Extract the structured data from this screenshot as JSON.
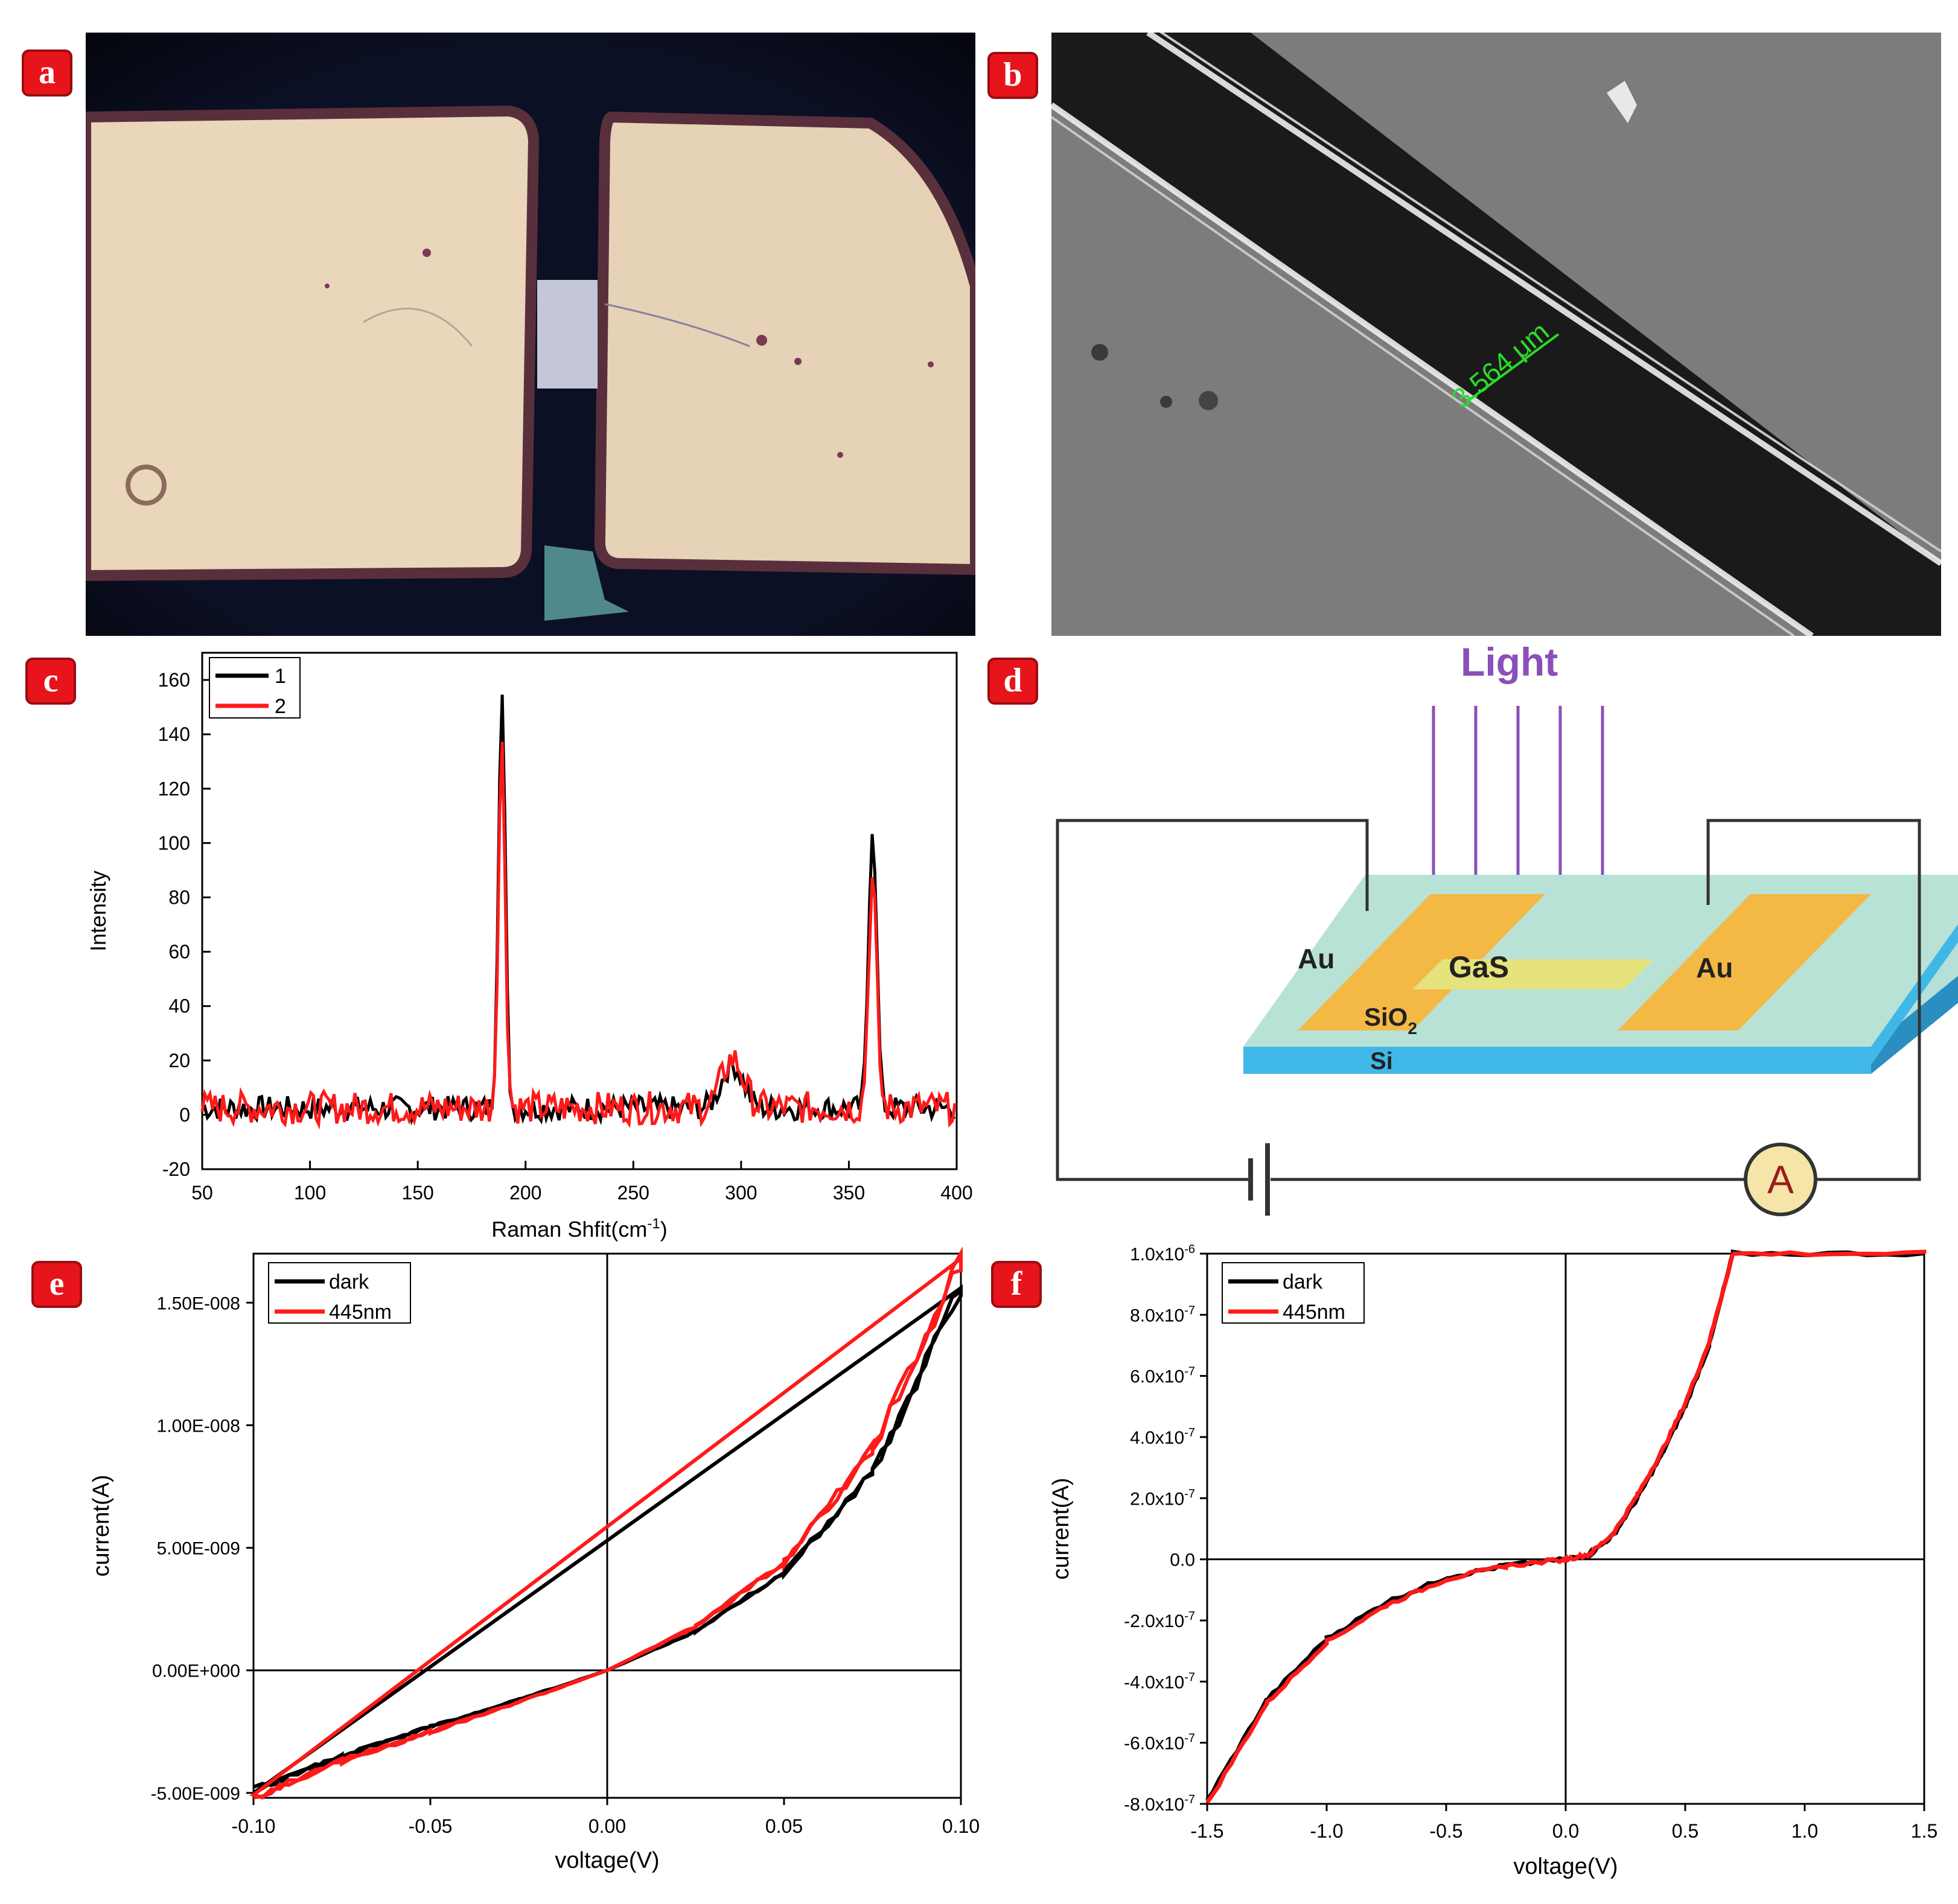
{
  "figure": {
    "labels": [
      "a",
      "b",
      "c",
      "d",
      "e",
      "f"
    ],
    "colors": {
      "series1": "#000000",
      "series2": "#ff1a1a",
      "badge": "#e8141b",
      "sem_measure": "#2bdc2b",
      "light_arrow": "#8a4fb8"
    }
  },
  "panel_b": {
    "measurement": "3.564 μm"
  },
  "panel_d": {
    "light": "Light",
    "au_left": "Au",
    "gas": "GaS",
    "au_right": "Au",
    "sio2_main": "SiO",
    "sio2_sub": "2",
    "si": "Si",
    "ammeter": "A"
  },
  "chart_data": [
    {
      "id": "c",
      "type": "line",
      "xlabel_main": "Raman Shfit(cm",
      "xlabel_sup": "-1",
      "xlabel_tail": ")",
      "ylabel": "Intensity",
      "xlim": [
        50,
        400
      ],
      "ylim": [
        -20,
        170
      ],
      "xticks": [
        "50",
        "100",
        "150",
        "200",
        "250",
        "300",
        "350",
        "400"
      ],
      "yticks": [
        "-20",
        "0",
        "20",
        "40",
        "60",
        "80",
        "100",
        "120",
        "140",
        "160"
      ],
      "legend": "top-left",
      "peaks": [
        {
          "x": 189,
          "y": 153
        },
        {
          "x": 296,
          "y": 16
        },
        {
          "x": 361,
          "y": 104
        }
      ],
      "series": [
        {
          "name": "1",
          "color": "#000000",
          "peaks": [
            153,
            16,
            104
          ]
        },
        {
          "name": "2",
          "color": "#ff1a1a",
          "peaks": [
            133,
            18,
            84
          ]
        }
      ]
    },
    {
      "id": "e",
      "type": "line",
      "xlabel": "voltage(V)",
      "ylabel": "current(A)",
      "xlim": [
        -0.1,
        0.1
      ],
      "ylim": [
        -5.2e-09,
        1.7e-08
      ],
      "xticks": [
        "-0.10",
        "-0.05",
        "0.00",
        "0.05",
        "0.10"
      ],
      "yticks": [
        "-5.00E-009",
        "0.00E+000",
        "5.00E-009",
        "1.00E-008",
        "1.50E-008"
      ],
      "legend": "top-left",
      "series": [
        {
          "name": "dark",
          "color": "#000000",
          "x": [
            -0.1,
            -0.075,
            -0.05,
            -0.025,
            0,
            0.025,
            0.05,
            0.075,
            0.1
          ],
          "y": [
            -4.9e-09,
            -3.5e-09,
            -2.3e-09,
            -1.2e-09,
            0,
            1.6e-09,
            4e-09,
            8e-09,
            1.56e-08
          ]
        },
        {
          "name": "445nm",
          "color": "#ff1a1a",
          "x": [
            -0.1,
            -0.075,
            -0.05,
            -0.025,
            0,
            0.025,
            0.05,
            0.075,
            0.1
          ],
          "y": [
            -5.2e-09,
            -3.7e-09,
            -2.5e-09,
            -1.3e-09,
            0,
            1.8e-09,
            4.4e-09,
            9e-09,
            1.68e-08
          ]
        }
      ]
    },
    {
      "id": "f",
      "type": "line",
      "xlabel": "voltage(V)",
      "ylabel": "current(A)",
      "xlim": [
        -1.5,
        1.5
      ],
      "ylim": [
        -8e-07,
        1e-06
      ],
      "xticks": [
        "-1.5",
        "-1.0",
        "-0.5",
        "0.0",
        "0.5",
        "1.0",
        "1.5"
      ],
      "yticks": [
        {
          "m": "-8.0x10",
          "e": "-7"
        },
        {
          "m": "-6.0x10",
          "e": "-7"
        },
        {
          "m": "-4.0x10",
          "e": "-7"
        },
        {
          "m": "-2.0x10",
          "e": "-7"
        },
        {
          "m": "0.0",
          "e": ""
        },
        {
          "m": "2.0x10",
          "e": "-7"
        },
        {
          "m": "4.0x10",
          "e": "-7"
        },
        {
          "m": "6.0x10",
          "e": "-7"
        },
        {
          "m": "8.0x10",
          "e": "-7"
        },
        {
          "m": "1.0x10",
          "e": "-6"
        }
      ],
      "legend": "top-left",
      "series": [
        {
          "name": "dark",
          "color": "#000000",
          "x": [
            -1.5,
            -1.25,
            -1.0,
            -0.75,
            -0.5,
            -0.25,
            0,
            0.1,
            0.2,
            0.3,
            0.4,
            0.5,
            0.6,
            0.7,
            1.5
          ],
          "y": [
            -7.9e-07,
            -4.6e-07,
            -2.6e-07,
            -1.4e-07,
            -6e-08,
            -2e-08,
            0,
            1.5e-08,
            8e-08,
            2e-07,
            3.4e-07,
            5e-07,
            7e-07,
            1e-06,
            1e-06
          ]
        },
        {
          "name": "445nm",
          "color": "#ff1a1a",
          "x": [
            -1.5,
            -1.25,
            -1.0,
            -0.75,
            -0.5,
            -0.25,
            0,
            0.1,
            0.2,
            0.3,
            0.4,
            0.5,
            0.6,
            0.7,
            1.5
          ],
          "y": [
            -8e-07,
            -4.7e-07,
            -2.7e-07,
            -1.5e-07,
            -6.5e-08,
            -2.2e-08,
            0,
            1.7e-08,
            8.5e-08,
            2.1e-07,
            3.5e-07,
            5.1e-07,
            7.1e-07,
            1e-06,
            1e-06
          ]
        }
      ]
    }
  ]
}
